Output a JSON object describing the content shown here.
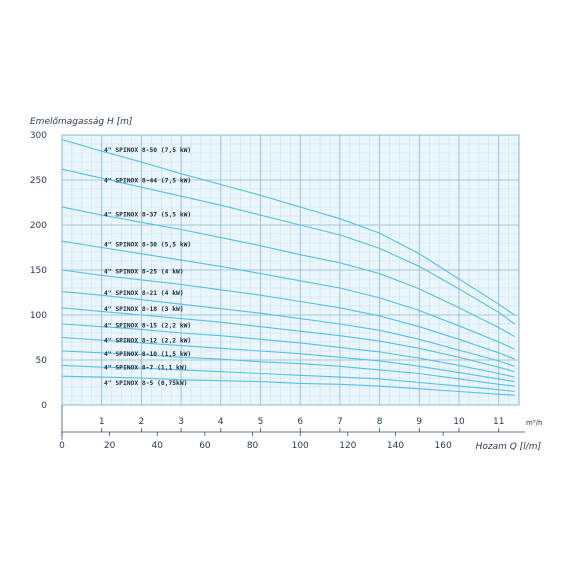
{
  "chart_data": {
    "type": "line",
    "title": "",
    "ylabel": "Emelőmagasság H [m]",
    "xlabel": "Hozam Q [l/m]",
    "x_unit_label": "m³/h",
    "ylim": [
      0,
      300
    ],
    "xlim": [
      0,
      12
    ],
    "y_ticks": [
      "0",
      "50",
      "100",
      "150",
      "200",
      "250",
      "300"
    ],
    "x_ticks": [
      "1",
      "2",
      "3",
      "4",
      "5",
      "6",
      "7",
      "8",
      "9",
      "10",
      "11"
    ],
    "x2_ticks": [
      "0",
      "20",
      "40",
      "60",
      "80",
      "100",
      "120",
      "140",
      "160"
    ],
    "grid": true,
    "colors": {
      "curve": "#55c0e6",
      "grid_major": "#8fb8cf",
      "grid_minor": "#c7dfeb",
      "plot_bg": "#eaf6fb",
      "axis": "#3a4a60",
      "text": "#2a3a50"
    },
    "x": [
      0,
      1,
      2,
      3,
      4,
      5,
      6,
      7,
      8,
      9,
      10,
      11,
      11.4
    ],
    "series": [
      {
        "name": "4\" SPINOX 8-50 (7,5 kW)",
        "label_y": 284,
        "values": [
          295,
          282,
          270,
          257,
          245,
          233,
          220,
          207,
          191,
          168,
          140,
          112,
          100
        ]
      },
      {
        "name": "4\" SPINOX 8-44 (7,5 kW)",
        "label_y": 250,
        "values": [
          262,
          252,
          242,
          232,
          222,
          211,
          200,
          189,
          174,
          154,
          129,
          103,
          90
        ]
      },
      {
        "name": "4\" SPINOX 8-37 (5,5 kW)",
        "label_y": 212,
        "values": [
          220,
          211,
          203,
          195,
          186,
          177,
          167,
          158,
          146,
          129,
          108,
          86,
          76
        ]
      },
      {
        "name": "4\" SPINOX 8-30 (5,5 kW)",
        "label_y": 179,
        "values": [
          182,
          175,
          168,
          161,
          154,
          146,
          138,
          130,
          119,
          105,
          88,
          70,
          62
        ]
      },
      {
        "name": "4\" SPINOX 8-25 (4 kW)",
        "label_y": 149,
        "values": [
          150,
          144,
          139,
          134,
          128,
          122,
          115,
          108,
          99,
          87,
          73,
          58,
          51
        ]
      },
      {
        "name": "4\" SPINOX 8-21 (4 kW)",
        "label_y": 125,
        "values": [
          126,
          122,
          117,
          112,
          107,
          102,
          96,
          90,
          83,
          73,
          61,
          49,
          43
        ]
      },
      {
        "name": "4\" SPINOX 8-18 (3 kW)",
        "label_y": 107,
        "values": [
          108,
          104,
          100,
          96,
          92,
          87,
          82,
          77,
          71,
          63,
          53,
          42,
          37
        ]
      },
      {
        "name": "4\" SPINOX 8-15 (2,2 kW)",
        "label_y": 89,
        "values": [
          90,
          87,
          84,
          80,
          77,
          73,
          69,
          64,
          59,
          52,
          44,
          35,
          31
        ]
      },
      {
        "name": "4\" SPINOX 8-12 (2,2 kW)",
        "label_y": 72,
        "values": [
          75,
          72,
          69,
          66,
          63,
          60,
          57,
          53,
          49,
          43,
          36,
          29,
          26
        ]
      },
      {
        "name": "4\" SPINOX 8-10 (1,5 kW)",
        "label_y": 57,
        "values": [
          60,
          58,
          56,
          53,
          51,
          48,
          46,
          43,
          39,
          35,
          29,
          23,
          21
        ]
      },
      {
        "name": "4\" SPINOX 8-7 (1,1 kW)",
        "label_y": 42,
        "values": [
          44,
          42,
          41,
          39,
          37,
          35,
          33,
          31,
          29,
          25,
          21,
          17,
          15
        ]
      },
      {
        "name": "4\" SPINOX 8-5 (0,75kW)",
        "label_y": 25,
        "values": [
          32,
          31,
          30,
          28,
          27,
          26,
          24,
          23,
          21,
          18,
          15,
          12,
          11
        ]
      }
    ]
  }
}
